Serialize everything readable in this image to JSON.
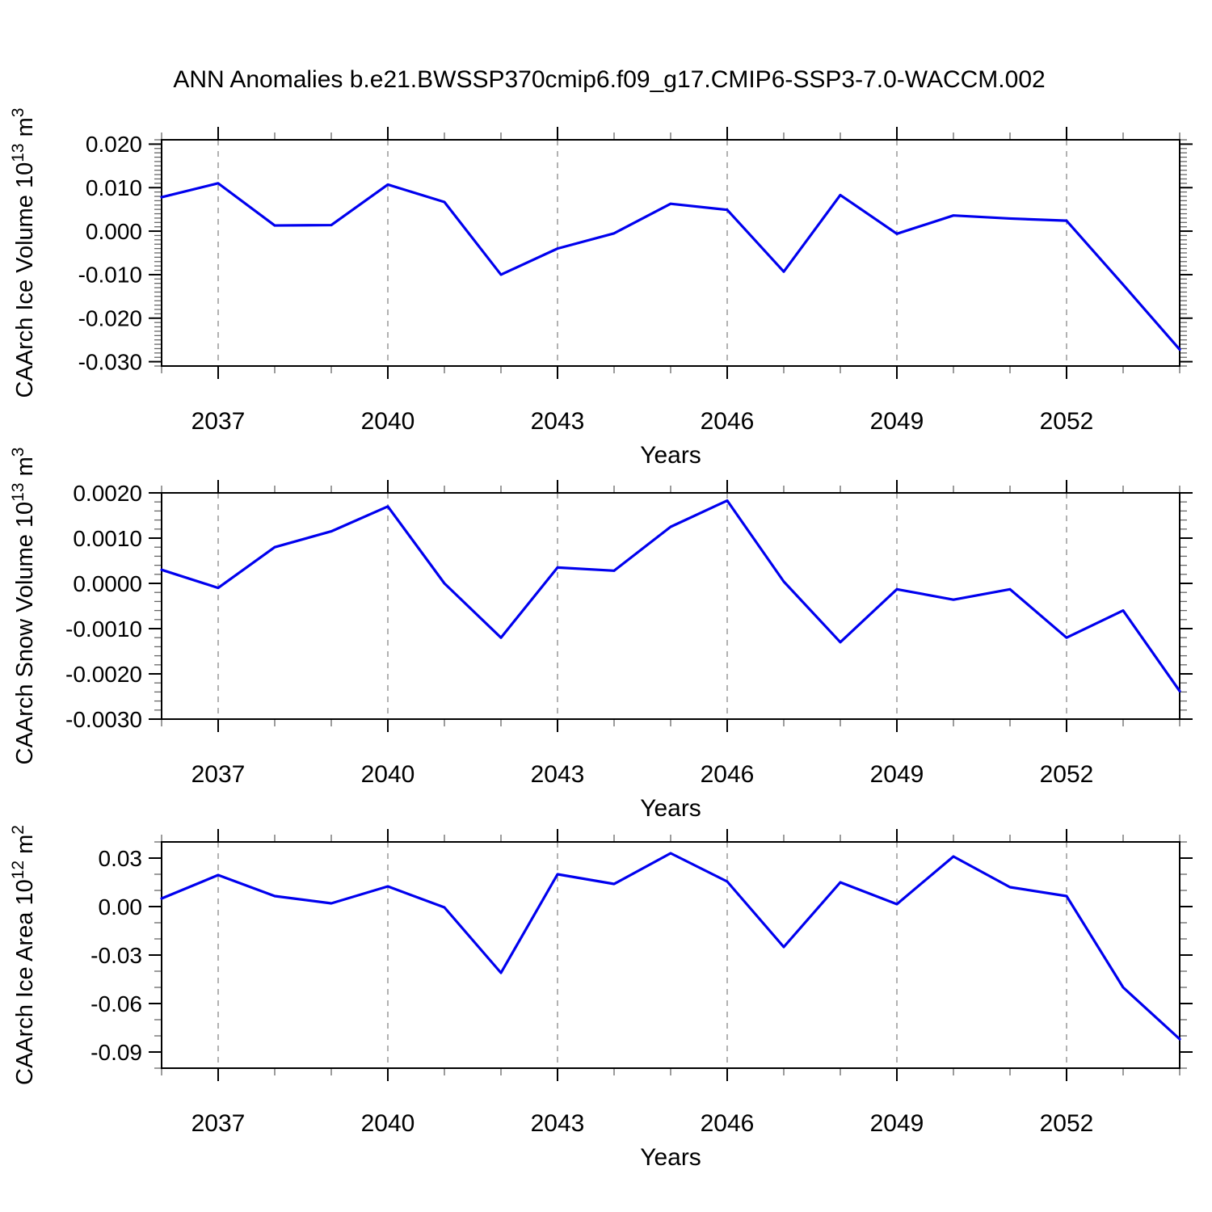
{
  "title": "ANN Anomalies b.e21.BWSSP370cmip6.f09_g17.CMIP6-SSP3-7.0-WACCM.002",
  "line_color": "#0000ee",
  "x_axis": {
    "label": "Years",
    "min": 2036,
    "max": 2054,
    "major_ticks": [
      2037,
      2040,
      2043,
      2046,
      2049,
      2052
    ],
    "minor_step": 1,
    "gridlines": "vertical-dashed-at-major-ticks"
  },
  "chart_data": [
    {
      "type": "line",
      "name": "caarch-ice-volume",
      "ylabel": "CAArch Ice Volume 10^13 m^3",
      "ylabel_parts": {
        "base1": "CAArch Ice Volume 10",
        "sup1": "13",
        "base2": " m",
        "sup2": "3"
      },
      "xlabel": "Years",
      "x": [
        2036,
        2037,
        2038,
        2039,
        2040,
        2041,
        2042,
        2043,
        2044,
        2045,
        2046,
        2047,
        2048,
        2049,
        2050,
        2051,
        2052,
        2053,
        2054
      ],
      "y": [
        0.0078,
        0.011,
        0.0013,
        0.0014,
        0.0107,
        0.0067,
        -0.01,
        -0.004,
        -0.0005,
        0.0063,
        0.0049,
        -0.0093,
        0.0083,
        -0.0006,
        0.0036,
        0.0029,
        0.0024,
        -0.0123,
        -0.0272
      ],
      "ylim": [
        -0.031,
        0.021
      ],
      "ymajor": [
        0.02,
        0.01,
        0.0,
        -0.01,
        -0.02,
        -0.03
      ],
      "yminor_step": 0.001,
      "ydecimals": 3,
      "legend": "none",
      "grid": "off-horizontal"
    },
    {
      "type": "line",
      "name": "caarch-snow-volume",
      "ylabel": "CAArch Snow Volume 10^13 m^3",
      "ylabel_parts": {
        "base1": "CAArch Snow Volume 10",
        "sup1": "13",
        "base2": " m",
        "sup2": "3"
      },
      "xlabel": "Years",
      "x": [
        2036,
        2037,
        2038,
        2039,
        2040,
        2041,
        2042,
        2043,
        2044,
        2045,
        2046,
        2047,
        2048,
        2049,
        2050,
        2051,
        2052,
        2053,
        2054
      ],
      "y": [
        0.0003,
        -0.0001,
        0.0008,
        0.00115,
        0.0017,
        0.0,
        -0.0012,
        0.00035,
        0.00028,
        0.00125,
        0.00183,
        4e-05,
        -0.0013,
        -0.00013,
        -0.00036,
        -0.00013,
        -0.0012,
        -0.0006,
        -0.00238
      ],
      "ylim": [
        -0.003,
        0.002
      ],
      "ymajor": [
        0.002,
        0.001,
        0.0,
        -0.001,
        -0.002,
        -0.003
      ],
      "yminor_step": 0.0002,
      "ydecimals": 4,
      "legend": "none",
      "grid": "off-horizontal"
    },
    {
      "type": "line",
      "name": "caarch-ice-area",
      "ylabel": "CAArch Ice Area 10^12 m^2",
      "ylabel_parts": {
        "base1": "CAArch Ice Area 10",
        "sup1": "12",
        "base2": " m",
        "sup2": "2"
      },
      "xlabel": "Years",
      "x": [
        2036,
        2037,
        2038,
        2039,
        2040,
        2041,
        2042,
        2043,
        2044,
        2045,
        2046,
        2047,
        2048,
        2049,
        2050,
        2051,
        2052,
        2053,
        2054
      ],
      "y": [
        0.005,
        0.0195,
        0.0065,
        0.002,
        0.0125,
        -0.0005,
        -0.041,
        0.02,
        0.014,
        0.033,
        0.0155,
        -0.025,
        0.015,
        0.0015,
        0.031,
        0.012,
        0.0065,
        -0.05,
        -0.082
      ],
      "ylim": [
        -0.1,
        0.04
      ],
      "ymajor": [
        0.03,
        0.0,
        -0.03,
        -0.06,
        -0.09
      ],
      "yminor_step": 0.01,
      "ydecimals": 2,
      "legend": "none",
      "grid": "off-horizontal"
    }
  ]
}
